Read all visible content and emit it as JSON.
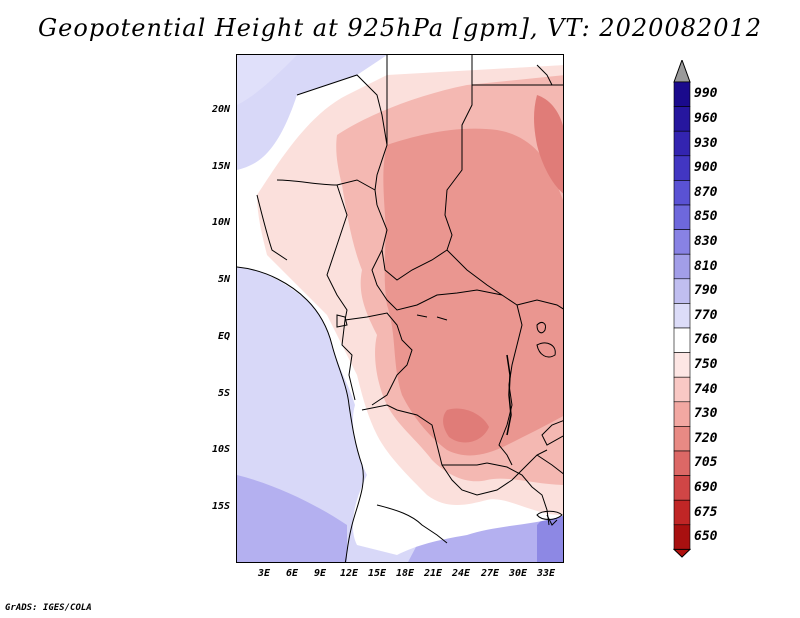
{
  "title": "Geopotential Height at 925hPa [gpm], VT: 2020082012",
  "credit": "GrADS: IGES/COLA",
  "map": {
    "lat_labels": [
      "20N",
      "15N",
      "10N",
      "5N",
      "EQ",
      "5S",
      "10S",
      "15S"
    ],
    "lon_labels": [
      "3E",
      "6E",
      "9E",
      "12E",
      "15E",
      "18E",
      "21E",
      "24E",
      "27E",
      "30E",
      "33E"
    ]
  },
  "colorbar": {
    "levels": [
      "990",
      "960",
      "930",
      "900",
      "870",
      "850",
      "830",
      "810",
      "790",
      "770",
      "760",
      "750",
      "740",
      "730",
      "720",
      "705",
      "690",
      "675",
      "650"
    ],
    "colors": [
      "#1a0a8c",
      "#26169e",
      "#3324b0",
      "#4236c2",
      "#5a52d4",
      "#6e68dc",
      "#8882e4",
      "#a29ee8",
      "#c0bef0",
      "#dcdcf8",
      "#ffffff",
      "#fde6e4",
      "#f9c8c4",
      "#f2a8a2",
      "#e88a84",
      "#dc6866",
      "#d04646",
      "#c02626",
      "#a81010",
      "#b0100e"
    ]
  },
  "fields": {
    "ocean_color": "#d8d8f8",
    "deep_blue_color": "#b4b0f0",
    "land_light": "#fbe0dc",
    "land_mid": "#f4b8b2",
    "land_dark": "#ea9690",
    "land_darkest": "#e07c78"
  }
}
